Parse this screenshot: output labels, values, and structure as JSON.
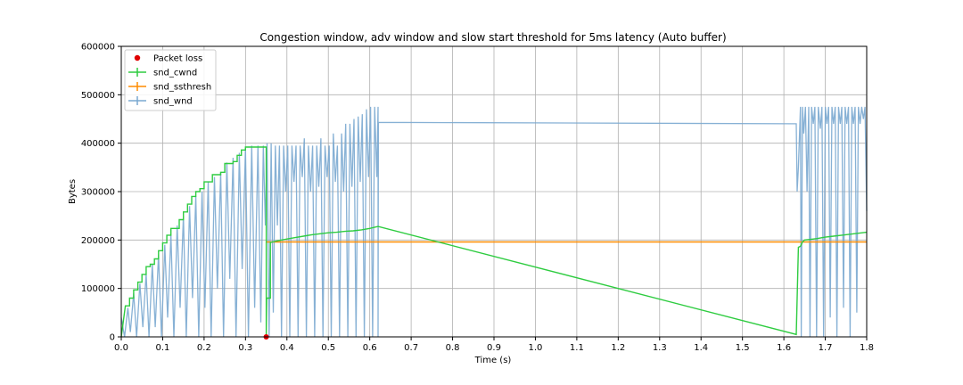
{
  "chart_data": {
    "type": "line",
    "title": "Congestion window, adv window and slow start threshold for 5ms latency (Auto buffer)",
    "xlabel": "Time (s)",
    "ylabel": "Bytes",
    "xlim": [
      0,
      1.8
    ],
    "ylim": [
      0,
      600000
    ],
    "x_ticks": [
      "0.0",
      "0.1",
      "0.2",
      "0.3",
      "0.4",
      "0.5",
      "0.6",
      "0.7",
      "0.8",
      "0.9",
      "1.0",
      "1.1",
      "1.2",
      "1.3",
      "1.4",
      "1.5",
      "1.6",
      "1.7",
      "1.8"
    ],
    "x_tick_values": [
      0,
      0.1,
      0.2,
      0.3,
      0.4,
      0.5,
      0.6,
      0.7,
      0.8,
      0.9,
      1.0,
      1.1,
      1.2,
      1.3,
      1.4,
      1.5,
      1.6,
      1.7,
      1.8
    ],
    "y_ticks": [
      "0",
      "100000",
      "200000",
      "300000",
      "400000",
      "500000",
      "600000"
    ],
    "y_tick_values": [
      0,
      100000,
      200000,
      300000,
      400000,
      500000,
      600000
    ],
    "grid": true,
    "legend_position": "top-left",
    "legend": [
      {
        "label": "Packet loss",
        "color": "#e00000",
        "marker": "dot"
      },
      {
        "label": "snd_cwnd",
        "color": "#2ecc40",
        "marker": "line"
      },
      {
        "label": "snd_ssthresh",
        "color": "#ff8c00",
        "marker": "line"
      },
      {
        "label": "snd_wnd",
        "color": "#7aa9d0",
        "marker": "line"
      }
    ],
    "series": [
      {
        "name": "snd_cwnd",
        "color": "#2ecc40",
        "points": [
          [
            0,
            0
          ],
          [
            0.005,
            32000
          ],
          [
            0.01,
            64000
          ],
          [
            0.02,
            64000
          ],
          [
            0.02,
            80000
          ],
          [
            0.03,
            80000
          ],
          [
            0.03,
            97000
          ],
          [
            0.04,
            97000
          ],
          [
            0.04,
            113000
          ],
          [
            0.05,
            113000
          ],
          [
            0.05,
            129000
          ],
          [
            0.06,
            129000
          ],
          [
            0.06,
            145000
          ],
          [
            0.07,
            145000
          ],
          [
            0.07,
            150000
          ],
          [
            0.08,
            150000
          ],
          [
            0.08,
            161000
          ],
          [
            0.09,
            161000
          ],
          [
            0.09,
            178000
          ],
          [
            0.1,
            178000
          ],
          [
            0.1,
            194000
          ],
          [
            0.11,
            194000
          ],
          [
            0.11,
            210000
          ],
          [
            0.12,
            210000
          ],
          [
            0.12,
            224000
          ],
          [
            0.14,
            224000
          ],
          [
            0.14,
            242000
          ],
          [
            0.15,
            242000
          ],
          [
            0.15,
            258000
          ],
          [
            0.16,
            258000
          ],
          [
            0.16,
            274000
          ],
          [
            0.17,
            274000
          ],
          [
            0.17,
            290000
          ],
          [
            0.18,
            290000
          ],
          [
            0.18,
            300000
          ],
          [
            0.19,
            300000
          ],
          [
            0.19,
            306000
          ],
          [
            0.2,
            306000
          ],
          [
            0.2,
            320000
          ],
          [
            0.22,
            320000
          ],
          [
            0.22,
            335000
          ],
          [
            0.24,
            335000
          ],
          [
            0.24,
            340000
          ],
          [
            0.25,
            340000
          ],
          [
            0.25,
            358000
          ],
          [
            0.27,
            358000
          ],
          [
            0.27,
            362000
          ],
          [
            0.28,
            362000
          ],
          [
            0.28,
            375000
          ],
          [
            0.29,
            375000
          ],
          [
            0.29,
            386000
          ],
          [
            0.3,
            386000
          ],
          [
            0.3,
            392000
          ],
          [
            0.35,
            392000
          ],
          [
            0.35,
            0
          ],
          [
            0.351,
            80000
          ],
          [
            0.36,
            80000
          ],
          [
            0.36,
            195000
          ],
          [
            0.37,
            197000
          ],
          [
            0.38,
            199000
          ],
          [
            0.4,
            202000
          ],
          [
            0.42,
            205000
          ],
          [
            0.44,
            208000
          ],
          [
            0.46,
            211000
          ],
          [
            0.48,
            213000
          ],
          [
            0.5,
            215000
          ],
          [
            0.52,
            216000
          ],
          [
            0.54,
            218000
          ],
          [
            0.56,
            219000
          ],
          [
            0.58,
            221000
          ],
          [
            0.6,
            224000
          ],
          [
            0.62,
            228000
          ],
          [
            1.63,
            5000
          ],
          [
            1.635,
            185000
          ],
          [
            1.64,
            187000
          ],
          [
            1.645,
            196000
          ],
          [
            1.65,
            200000
          ],
          [
            1.66,
            201000
          ],
          [
            1.68,
            203000
          ],
          [
            1.7,
            206000
          ],
          [
            1.72,
            208000
          ],
          [
            1.74,
            210000
          ],
          [
            1.76,
            212000
          ],
          [
            1.78,
            214000
          ],
          [
            1.8,
            216000
          ]
        ]
      },
      {
        "name": "snd_ssthresh",
        "color": "#ff8c00",
        "points": [
          [
            0.35,
            196000
          ],
          [
            1.8,
            196000
          ]
        ]
      },
      {
        "name": "snd_wnd",
        "color": "#7aa9d0",
        "points": [
          [
            0,
            40000
          ],
          [
            0.008,
            0
          ],
          [
            0.016,
            60000
          ],
          [
            0.022,
            10000
          ],
          [
            0.03,
            90000
          ],
          [
            0.037,
            0
          ],
          [
            0.045,
            110000
          ],
          [
            0.052,
            20000
          ],
          [
            0.06,
            130000
          ],
          [
            0.067,
            0
          ],
          [
            0.075,
            150000
          ],
          [
            0.082,
            20000
          ],
          [
            0.09,
            170000
          ],
          [
            0.097,
            0
          ],
          [
            0.105,
            190000
          ],
          [
            0.112,
            40000
          ],
          [
            0.12,
            210000
          ],
          [
            0.127,
            0
          ],
          [
            0.135,
            230000
          ],
          [
            0.142,
            60000
          ],
          [
            0.15,
            250000
          ],
          [
            0.157,
            0
          ],
          [
            0.165,
            270000
          ],
          [
            0.172,
            80000
          ],
          [
            0.18,
            290000
          ],
          [
            0.187,
            0
          ],
          [
            0.195,
            300000
          ],
          [
            0.202,
            60000
          ],
          [
            0.21,
            320000
          ],
          [
            0.217,
            0
          ],
          [
            0.225,
            330000
          ],
          [
            0.232,
            100000
          ],
          [
            0.24,
            340000
          ],
          [
            0.247,
            0
          ],
          [
            0.255,
            360000
          ],
          [
            0.262,
            120000
          ],
          [
            0.27,
            370000
          ],
          [
            0.277,
            0
          ],
          [
            0.285,
            380000
          ],
          [
            0.292,
            140000
          ],
          [
            0.3,
            390000
          ],
          [
            0.307,
            0
          ],
          [
            0.315,
            395000
          ],
          [
            0.322,
            60000
          ],
          [
            0.33,
            395000
          ],
          [
            0.337,
            30000
          ],
          [
            0.343,
            395000
          ],
          [
            0.348,
            230000
          ],
          [
            0.352,
            400000
          ],
          [
            0.357,
            0
          ],
          [
            0.362,
            400000
          ],
          [
            0.367,
            50000
          ],
          [
            0.372,
            395000
          ],
          [
            0.377,
            230000
          ],
          [
            0.382,
            395000
          ],
          [
            0.387,
            0
          ],
          [
            0.392,
            395000
          ],
          [
            0.397,
            300000
          ],
          [
            0.402,
            395000
          ],
          [
            0.407,
            0
          ],
          [
            0.412,
            395000
          ],
          [
            0.417,
            320000
          ],
          [
            0.422,
            395000
          ],
          [
            0.427,
            0
          ],
          [
            0.432,
            395000
          ],
          [
            0.437,
            330000
          ],
          [
            0.442,
            410000
          ],
          [
            0.447,
            0
          ],
          [
            0.452,
            395000
          ],
          [
            0.457,
            300000
          ],
          [
            0.462,
            395000
          ],
          [
            0.467,
            0
          ],
          [
            0.472,
            395000
          ],
          [
            0.477,
            310000
          ],
          [
            0.482,
            410000
          ],
          [
            0.487,
            0
          ],
          [
            0.492,
            395000
          ],
          [
            0.497,
            330000
          ],
          [
            0.502,
            395000
          ],
          [
            0.507,
            0
          ],
          [
            0.512,
            420000
          ],
          [
            0.517,
            320000
          ],
          [
            0.522,
            395000
          ],
          [
            0.527,
            0
          ],
          [
            0.532,
            420000
          ],
          [
            0.537,
            300000
          ],
          [
            0.542,
            440000
          ],
          [
            0.547,
            0
          ],
          [
            0.552,
            440000
          ],
          [
            0.557,
            310000
          ],
          [
            0.562,
            450000
          ],
          [
            0.567,
            0
          ],
          [
            0.572,
            455000
          ],
          [
            0.577,
            320000
          ],
          [
            0.582,
            460000
          ],
          [
            0.587,
            0
          ],
          [
            0.592,
            470000
          ],
          [
            0.597,
            330000
          ],
          [
            0.602,
            475000
          ],
          [
            0.607,
            0
          ],
          [
            0.612,
            475000
          ],
          [
            0.617,
            330000
          ],
          [
            0.62,
            475000
          ],
          [
            0.62,
            0
          ],
          [
            0.621,
            443000
          ],
          [
            1.63,
            440000
          ],
          [
            1.632,
            300000
          ],
          [
            1.635,
            350000
          ],
          [
            1.64,
            475000
          ],
          [
            1.642,
            0
          ],
          [
            1.645,
            475000
          ],
          [
            1.648,
            420000
          ],
          [
            1.652,
            475000
          ],
          [
            1.656,
            300000
          ],
          [
            1.66,
            475000
          ],
          [
            1.663,
            0
          ],
          [
            1.667,
            475000
          ],
          [
            1.671,
            440000
          ],
          [
            1.675,
            475000
          ],
          [
            1.679,
            0
          ],
          [
            1.683,
            475000
          ],
          [
            1.688,
            430000
          ],
          [
            1.692,
            475000
          ],
          [
            1.696,
            0
          ],
          [
            1.7,
            475000
          ],
          [
            1.704,
            440000
          ],
          [
            1.708,
            475000
          ],
          [
            1.712,
            40000
          ],
          [
            1.716,
            475000
          ],
          [
            1.72,
            440000
          ],
          [
            1.724,
            475000
          ],
          [
            1.728,
            0
          ],
          [
            1.732,
            475000
          ],
          [
            1.736,
            440000
          ],
          [
            1.74,
            475000
          ],
          [
            1.744,
            60000
          ],
          [
            1.748,
            475000
          ],
          [
            1.752,
            440000
          ],
          [
            1.756,
            475000
          ],
          [
            1.76,
            0
          ],
          [
            1.764,
            475000
          ],
          [
            1.768,
            440000
          ],
          [
            1.772,
            475000
          ],
          [
            1.776,
            50000
          ],
          [
            1.78,
            475000
          ],
          [
            1.784,
            440000
          ],
          [
            1.788,
            475000
          ],
          [
            1.792,
            450000
          ],
          [
            1.796,
            475000
          ],
          [
            1.8,
            260000
          ]
        ]
      }
    ],
    "packet_loss": [
      [
        0.35,
        0
      ]
    ]
  }
}
